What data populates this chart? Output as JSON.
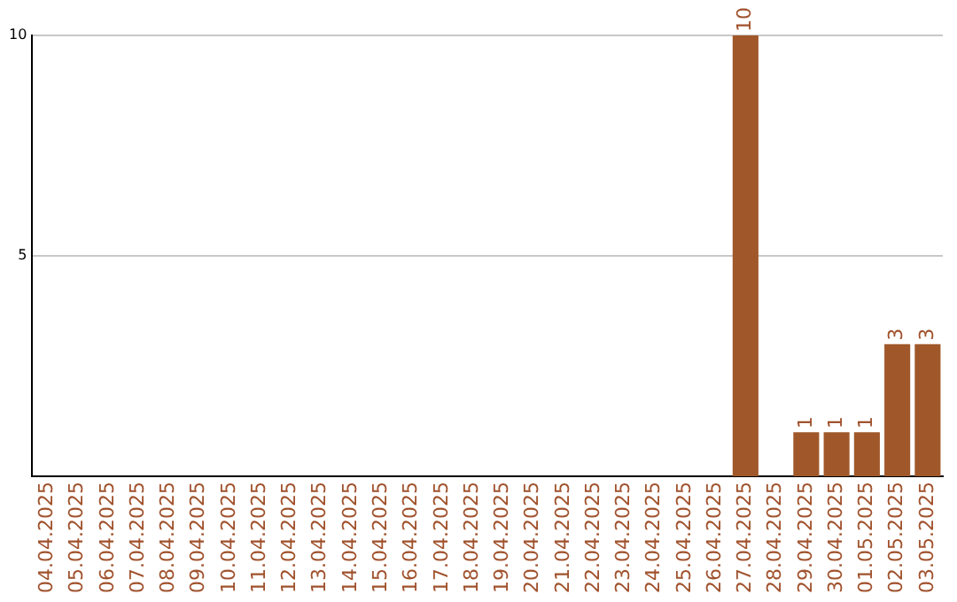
{
  "chart_data": {
    "type": "bar",
    "categories": [
      "04.04.2025",
      "05.04.2025",
      "06.04.2025",
      "07.04.2025",
      "08.04.2025",
      "09.04.2025",
      "10.04.2025",
      "11.04.2025",
      "12.04.2025",
      "13.04.2025",
      "14.04.2025",
      "15.04.2025",
      "16.04.2025",
      "17.04.2025",
      "18.04.2025",
      "19.04.2025",
      "20.04.2025",
      "21.04.2025",
      "22.04.2025",
      "23.04.2025",
      "24.04.2025",
      "25.04.2025",
      "26.04.2025",
      "27.04.2025",
      "28.04.2025",
      "29.04.2025",
      "30.04.2025",
      "01.05.2025",
      "02.05.2025",
      "03.05.2025"
    ],
    "values": [
      0,
      0,
      0,
      0,
      0,
      0,
      0,
      0,
      0,
      0,
      0,
      0,
      0,
      0,
      0,
      0,
      0,
      0,
      0,
      0,
      0,
      0,
      0,
      10,
      0,
      1,
      1,
      1,
      3,
      3
    ],
    "value_labels": [
      null,
      null,
      null,
      null,
      null,
      null,
      null,
      null,
      null,
      null,
      null,
      null,
      null,
      null,
      null,
      null,
      null,
      null,
      null,
      null,
      null,
      null,
      null,
      "10",
      null,
      "1",
      "1",
      "1",
      "3",
      "3"
    ],
    "color": "#a0582a",
    "ylim": [
      0,
      10
    ],
    "yticks": [
      5,
      10
    ],
    "grid": "y"
  }
}
